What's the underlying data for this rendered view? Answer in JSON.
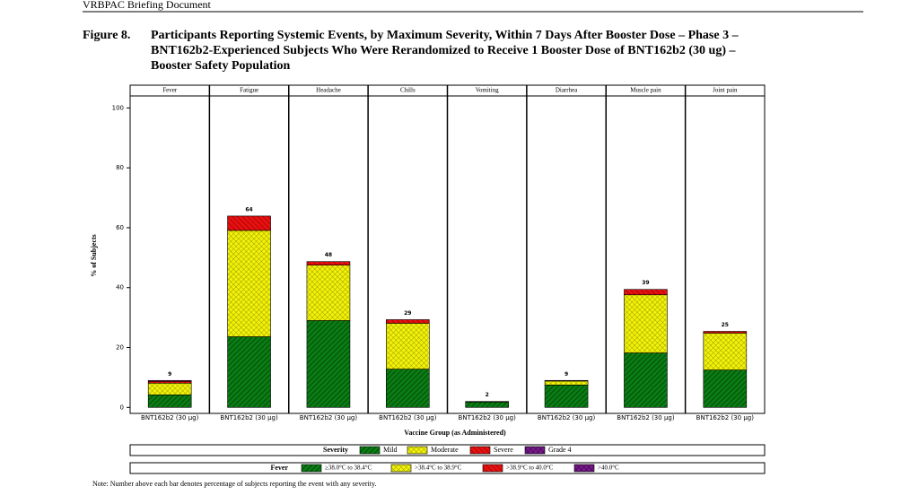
{
  "header": "VRBPAC Briefing Document",
  "figure_label": "Figure 8.",
  "figure_title": [
    "Participants Reporting Systemic Events, by Maximum Severity, Within 7 Days After Booster Dose – Phase 3 –",
    "BNT162b2-Experienced Subjects Who Were Rerandomized to Receive 1 Booster Dose of BNT162b2 (30 ug) –",
    "Booster Safety Population"
  ],
  "chart_data": {
    "type": "bar",
    "stacked": true,
    "categories": [
      "Fever",
      "Fatigue",
      "Headache",
      "Chills",
      "Vomiting",
      "Diarrhea",
      "Muscle pain",
      "Joint pain"
    ],
    "group_label": "BNT162b2 (30 µg)",
    "x_label": "Vaccine Group (as Administered)",
    "y_label": "% of Subjects",
    "ylim": [
      -2,
      104
    ],
    "yticks": [
      0,
      20,
      40,
      60,
      80,
      100
    ],
    "series": [
      {
        "name": "Mild",
        "color": "#0a7d14",
        "values": [
          4.2,
          23.6,
          29.0,
          12.8,
          1.8,
          7.5,
          18.2,
          12.5
        ]
      },
      {
        "name": "Moderate",
        "color": "#f2f20a",
        "values": [
          3.9,
          35.5,
          18.5,
          15.3,
          0.2,
          1.3,
          19.4,
          12.3
        ]
      },
      {
        "name": "Severe",
        "color": "#e81010",
        "values": [
          0.6,
          4.8,
          1.2,
          1.2,
          0,
          0.2,
          1.8,
          0.6
        ]
      },
      {
        "name": "Grade 4",
        "color": "#7a1a8c",
        "values": [
          0.3,
          0,
          0,
          0,
          0,
          0,
          0,
          0
        ]
      }
    ],
    "totals": [
      9,
      64,
      48,
      29,
      2,
      9,
      39,
      25
    ],
    "legend_title": "Severity",
    "fever_legend": {
      "title": "Fever",
      "labels": [
        "≥38.0°C to 38.4°C",
        ">38.4°C to 38.9°C",
        ">38.9°C to 40.0°C",
        ">40.0°C"
      ]
    }
  },
  "note": "Note: Number above each bar denotes percentage of subjects reporting the event with any severity."
}
